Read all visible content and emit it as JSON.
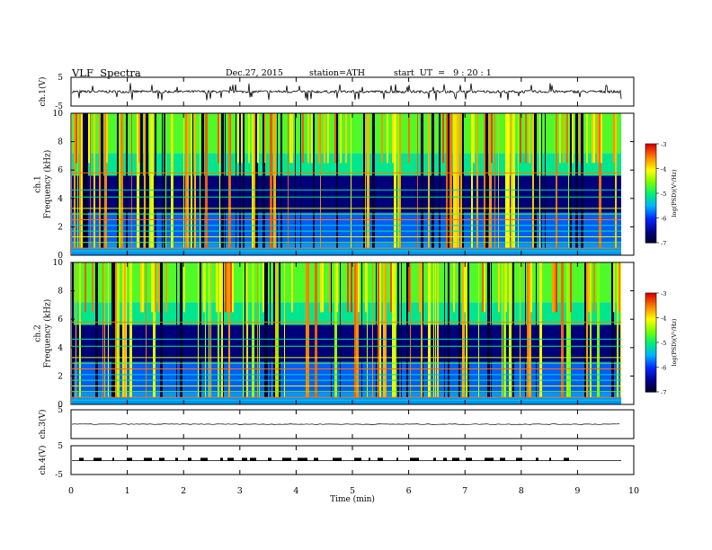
{
  "header": {
    "title": "VLF  Spectra",
    "date": "Dec.27, 2015",
    "station": "station=ATH",
    "start": "start  UT  =   9 : 20 : 1"
  },
  "chart_data": [
    {
      "type": "line",
      "panel": "ch1-waveform",
      "ylabel": "ch.1(V)",
      "ylim": [
        -5,
        5
      ],
      "yticks": [
        "5",
        "-5"
      ],
      "xlim": [
        0,
        10
      ],
      "series_shown": "noisy waveform near 0 V with spikes up to about +3 V and down to about -3 V"
    },
    {
      "type": "heatmap",
      "panel": "ch1-spectrogram",
      "ylabel": "ch.1\nFrequency  (kHz)",
      "ylim": [
        0,
        10
      ],
      "yticks": [
        "0",
        "2",
        "4",
        "6",
        "8",
        "10"
      ],
      "xlim": [
        0,
        10
      ],
      "colorbar": {
        "label": "log(PSD)(V²/Hz)",
        "range": [
          -7,
          -3
        ],
        "ticks": [
          "-3",
          "-4",
          "-5",
          "-6",
          "-7"
        ]
      }
    },
    {
      "type": "heatmap",
      "panel": "ch2-spectrogram",
      "ylabel": "ch.2\nFrequency  (kHz)",
      "ylim": [
        0,
        10
      ],
      "yticks": [
        "0",
        "2",
        "4",
        "6",
        "8",
        "10"
      ],
      "xlim": [
        0,
        10
      ],
      "colorbar": {
        "label": "log(PSD)(V²/Hz)",
        "range": [
          -7,
          -3
        ],
        "ticks": [
          "-3",
          "-4",
          "-5",
          "-6",
          "-7"
        ]
      }
    },
    {
      "type": "line",
      "panel": "ch3-waveform",
      "ylabel": "ch.3(V)",
      "ylim": [
        -5,
        5
      ],
      "yticks": [
        "5"
      ],
      "xlim": [
        0,
        10
      ],
      "series_shown": "nearly flat near 0 V"
    },
    {
      "type": "line",
      "panel": "ch4-waveform",
      "ylabel": "ch.4(V)",
      "ylim": [
        -5,
        5
      ],
      "yticks": [
        "5",
        "-5"
      ],
      "xlim": [
        0,
        10
      ],
      "series_shown": "flat baseline with short pulse bursts"
    },
    {
      "type": "axis",
      "xlabel": "Time  (min)",
      "xticks": [
        "0",
        "1",
        "2",
        "3",
        "4",
        "5",
        "6",
        "7",
        "8",
        "9",
        "10"
      ],
      "xlim": [
        0,
        10
      ]
    }
  ]
}
